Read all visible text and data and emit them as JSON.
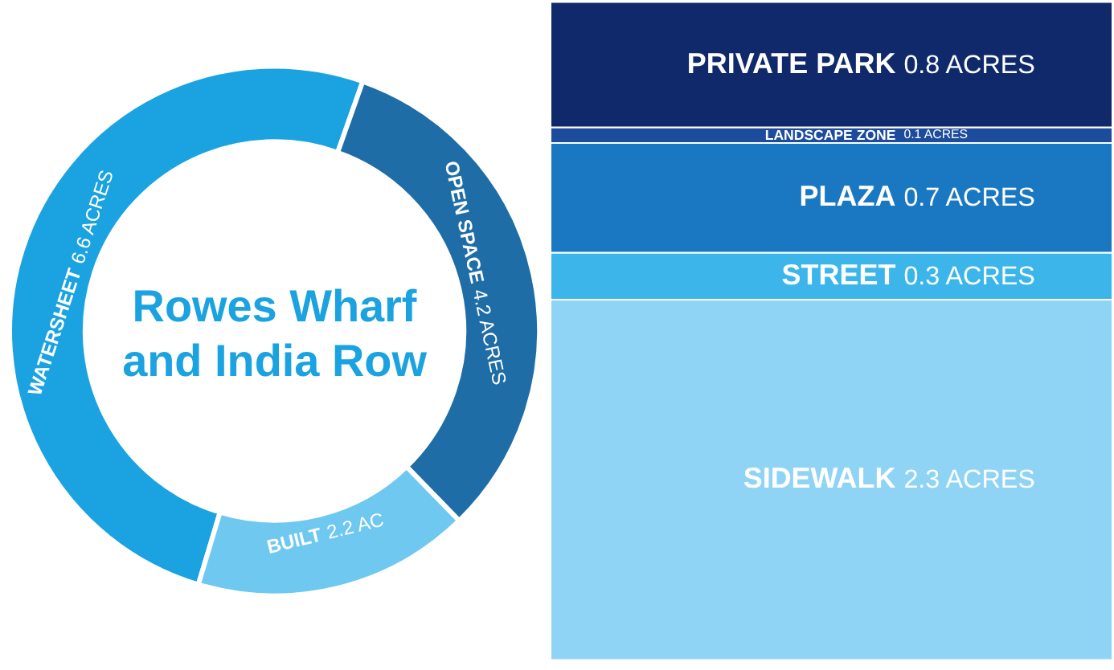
{
  "chart_data": [
    {
      "type": "donut",
      "title": "Rowes Wharf and India Row",
      "categories": [
        "WATERSHEET",
        "OPEN SPACE",
        "BUILT"
      ],
      "values": [
        6.6,
        4.2,
        2.2
      ],
      "value_labels": [
        "6.6 ACRES",
        "4.2 ACRES",
        "2.2 AC"
      ],
      "colors": [
        "#1aa3e0",
        "#1f6da6",
        "#6fc8f0"
      ]
    },
    {
      "type": "bar",
      "stacked": true,
      "tick_labels": false,
      "categories": [
        null
      ],
      "series": [
        {
          "name": "SIDEWALK",
          "color": "#8fd4f5",
          "values": [
            2.3
          ],
          "value_labels": [
            "2.3 ACRES"
          ]
        },
        {
          "name": "STREET",
          "color": "#3cb6ea",
          "values": [
            0.3
          ],
          "value_labels": [
            "0.3 ACRES"
          ]
        },
        {
          "name": "PLAZA",
          "color": "#1a78c2",
          "values": [
            0.7
          ],
          "value_labels": [
            "0.7 ACRES"
          ]
        },
        {
          "name": "LANDSCAPE ZONE",
          "color": "#1d4c9c",
          "values": [
            0.1
          ],
          "value_labels": [
            "0.1 ACRES"
          ]
        },
        {
          "name": "PRIVATE PARK",
          "color": "#10296b",
          "values": [
            0.8
          ],
          "value_labels": [
            "0.8 ACRES"
          ]
        }
      ]
    }
  ]
}
